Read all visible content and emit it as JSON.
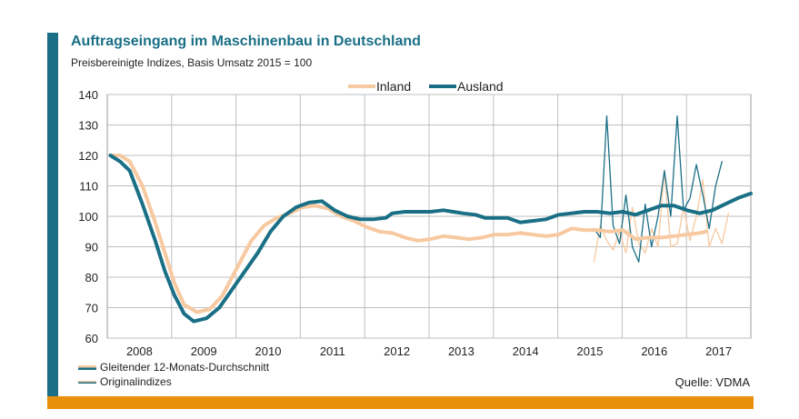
{
  "title": "Auftragseingang im Maschinenbau in Deutschland",
  "subtitle": "Preisbereinigte Indizes, Basis Umsatz 2015 = 100",
  "source": "Quelle: VDMA",
  "legend_bottom": {
    "smoothed": "Gleitender 12-Monats-Durchschnitt",
    "original": "Originalindizes"
  },
  "colors": {
    "accent": "#1a6f86",
    "orange": "#e8900c",
    "inland": "#f7c9a0",
    "ausland": "#1a6f86",
    "grid": "#bfbfbf"
  },
  "chart_data": {
    "type": "line",
    "title": "Auftragseingang im Maschinenbau in Deutschland",
    "subtitle": "Preisbereinigte Indizes, Basis Umsatz 2015 = 100",
    "xlabel": "",
    "ylabel": "",
    "ylim": [
      60,
      140
    ],
    "yticks": [
      60,
      70,
      80,
      90,
      100,
      110,
      120,
      130,
      140
    ],
    "x_categories": [
      "2008",
      "2009",
      "2010",
      "2011",
      "2012",
      "2013",
      "2014",
      "2015",
      "2016",
      "2017"
    ],
    "grid": true,
    "legend_position": "top-center",
    "series": [
      {
        "name": "Inland",
        "kind": "Gleitender 12-Monats-Durchschnitt",
        "points": [
          [
            2008.0,
            120
          ],
          [
            2008.15,
            120
          ],
          [
            2008.3,
            118
          ],
          [
            2008.5,
            110
          ],
          [
            2008.7,
            98
          ],
          [
            2008.85,
            88
          ],
          [
            2009.0,
            78
          ],
          [
            2009.15,
            71
          ],
          [
            2009.35,
            68.5
          ],
          [
            2009.55,
            69.5
          ],
          [
            2009.75,
            74
          ],
          [
            2010.0,
            84
          ],
          [
            2010.2,
            92
          ],
          [
            2010.4,
            97
          ],
          [
            2010.6,
            99.5
          ],
          [
            2010.8,
            101
          ],
          [
            2011.0,
            103
          ],
          [
            2011.2,
            103.5
          ],
          [
            2011.4,
            102.5
          ],
          [
            2011.6,
            100
          ],
          [
            2011.8,
            98.5
          ],
          [
            2012.0,
            96.5
          ],
          [
            2012.2,
            95
          ],
          [
            2012.4,
            94.5
          ],
          [
            2012.6,
            93
          ],
          [
            2012.8,
            92
          ],
          [
            2013.0,
            92.5
          ],
          [
            2013.2,
            93.5
          ],
          [
            2013.4,
            93
          ],
          [
            2013.6,
            92.5
          ],
          [
            2013.8,
            93
          ],
          [
            2014.0,
            94
          ],
          [
            2014.2,
            94
          ],
          [
            2014.4,
            94.5
          ],
          [
            2014.6,
            94
          ],
          [
            2014.8,
            93.5
          ],
          [
            2015.0,
            94
          ],
          [
            2015.2,
            96
          ],
          [
            2015.4,
            95.5
          ],
          [
            2015.6,
            95.5
          ],
          [
            2015.8,
            95
          ],
          [
            2016.0,
            95.5
          ],
          [
            2016.2,
            92.5
          ],
          [
            2016.4,
            93
          ],
          [
            2016.6,
            93
          ],
          [
            2016.8,
            93.5
          ],
          [
            2017.0,
            94
          ],
          [
            2017.2,
            94.5
          ],
          [
            2017.3,
            95
          ]
        ]
      },
      {
        "name": "Ausland",
        "kind": "Gleitender 12-Monats-Durchschnitt",
        "points": [
          [
            2008.0,
            120
          ],
          [
            2008.15,
            118
          ],
          [
            2008.3,
            115
          ],
          [
            2008.5,
            104
          ],
          [
            2008.7,
            92
          ],
          [
            2008.85,
            82
          ],
          [
            2009.0,
            74
          ],
          [
            2009.15,
            68
          ],
          [
            2009.3,
            65.5
          ],
          [
            2009.5,
            66.5
          ],
          [
            2009.7,
            70
          ],
          [
            2009.9,
            76
          ],
          [
            2010.1,
            82
          ],
          [
            2010.3,
            88
          ],
          [
            2010.5,
            95
          ],
          [
            2010.7,
            100
          ],
          [
            2010.9,
            103
          ],
          [
            2011.1,
            104.5
          ],
          [
            2011.3,
            105
          ],
          [
            2011.5,
            102
          ],
          [
            2011.7,
            100
          ],
          [
            2011.9,
            99
          ],
          [
            2012.1,
            99
          ],
          [
            2012.3,
            99.5
          ],
          [
            2012.4,
            101
          ],
          [
            2012.6,
            101.5
          ],
          [
            2012.8,
            101.5
          ],
          [
            2013.0,
            101.5
          ],
          [
            2013.2,
            102
          ],
          [
            2013.35,
            101.5
          ],
          [
            2013.5,
            101
          ],
          [
            2013.7,
            100.5
          ],
          [
            2013.85,
            99.5
          ],
          [
            2014.0,
            99.5
          ],
          [
            2014.2,
            99.5
          ],
          [
            2014.4,
            98
          ],
          [
            2014.6,
            98.5
          ],
          [
            2014.8,
            99
          ],
          [
            2015.0,
            100.5
          ],
          [
            2015.2,
            101
          ],
          [
            2015.4,
            101.5
          ],
          [
            2015.6,
            101.5
          ],
          [
            2015.8,
            101
          ],
          [
            2016.0,
            101.5
          ],
          [
            2016.2,
            100.5
          ],
          [
            2016.4,
            102
          ],
          [
            2016.6,
            103.5
          ],
          [
            2016.8,
            103.5
          ],
          [
            2017.0,
            102
          ],
          [
            2017.2,
            101
          ],
          [
            2017.4,
            102
          ],
          [
            2017.6,
            104
          ],
          [
            2017.8,
            106
          ],
          [
            2018.0,
            107.5
          ]
        ]
      },
      {
        "name": "Inland",
        "kind": "Originalindizes",
        "points": [
          [
            2015.55,
            85
          ],
          [
            2015.65,
            97
          ],
          [
            2015.75,
            92
          ],
          [
            2015.85,
            89
          ],
          [
            2015.95,
            95
          ],
          [
            2016.05,
            88
          ],
          [
            2016.15,
            103
          ],
          [
            2016.25,
            91
          ],
          [
            2016.35,
            88
          ],
          [
            2016.45,
            96
          ],
          [
            2016.55,
            90
          ],
          [
            2016.65,
            115
          ],
          [
            2016.75,
            90
          ],
          [
            2016.85,
            91
          ],
          [
            2016.95,
            103
          ],
          [
            2017.05,
            92
          ],
          [
            2017.15,
            100
          ],
          [
            2017.25,
            112
          ],
          [
            2017.35,
            90
          ],
          [
            2017.45,
            96
          ],
          [
            2017.55,
            91
          ],
          [
            2017.65,
            101
          ]
        ]
      },
      {
        "name": "Ausland",
        "kind": "Originalindizes",
        "points": [
          [
            2015.55,
            96
          ],
          [
            2015.65,
            93
          ],
          [
            2015.75,
            133
          ],
          [
            2015.85,
            97
          ],
          [
            2015.95,
            91
          ],
          [
            2016.05,
            107
          ],
          [
            2016.15,
            90
          ],
          [
            2016.25,
            85
          ],
          [
            2016.35,
            104
          ],
          [
            2016.45,
            90
          ],
          [
            2016.55,
            100
          ],
          [
            2016.65,
            115
          ],
          [
            2016.75,
            100
          ],
          [
            2016.85,
            133
          ],
          [
            2016.95,
            102
          ],
          [
            2017.05,
            106
          ],
          [
            2017.15,
            117
          ],
          [
            2017.25,
            107
          ],
          [
            2017.35,
            96
          ],
          [
            2017.45,
            110
          ],
          [
            2017.55,
            118
          ]
        ]
      }
    ]
  }
}
